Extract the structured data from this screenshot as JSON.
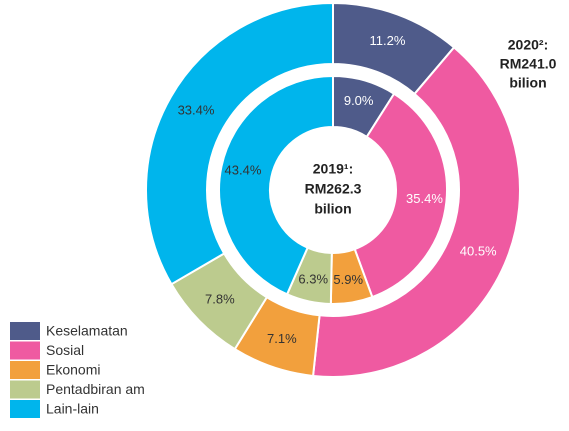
{
  "chart_data": {
    "type": "nested-donut",
    "categories": [
      "Keselamatan",
      "Sosial",
      "Ekonomi",
      "Pentadbiran am",
      "Lain-lain"
    ],
    "colors": [
      "#4f5b8a",
      "#ef5aa1",
      "#f2a03d",
      "#bccb8e",
      "#00b5ec"
    ],
    "series": [
      {
        "label": [
          "2020²:",
          "RM241.0",
          "bilion"
        ],
        "values": [
          11.2,
          40.5,
          7.1,
          7.8,
          33.4
        ],
        "value_labels": [
          "11.2%",
          "40.5%",
          "7.1%",
          "7.8%",
          "33.4%"
        ]
      },
      {
        "label": [
          "2019¹:",
          "RM262.3",
          "bilion"
        ],
        "values": [
          9.0,
          35.4,
          5.9,
          6.3,
          43.4
        ],
        "value_labels": [
          "9.0%",
          "35.4%",
          "5.9%",
          "6.3%",
          "43.4%"
        ]
      }
    ]
  }
}
